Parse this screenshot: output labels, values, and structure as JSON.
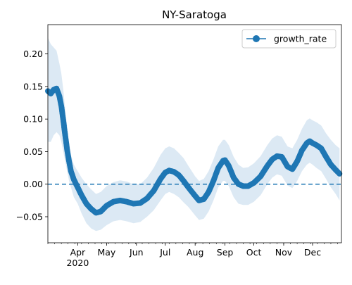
{
  "chart_data": {
    "type": "line",
    "title": "NY-Saratoga",
    "xlabel": "",
    "ylabel": "",
    "grid": false,
    "legend": {
      "placement": "top-right",
      "entries": [
        "growth_rate"
      ]
    },
    "x_range": [
      "2020-03-01",
      "2020-12-31"
    ],
    "ylim": [
      -0.09,
      0.245
    ],
    "x_ticks": [
      {
        "date": "2020-04-01",
        "label": "Apr",
        "sublabel": "2020"
      },
      {
        "date": "2020-05-01",
        "label": "May"
      },
      {
        "date": "2020-06-01",
        "label": "Jun"
      },
      {
        "date": "2020-07-01",
        "label": "Jul"
      },
      {
        "date": "2020-08-01",
        "label": "Aug"
      },
      {
        "date": "2020-09-01",
        "label": "Sep"
      },
      {
        "date": "2020-10-01",
        "label": "Oct"
      },
      {
        "date": "2020-11-01",
        "label": "Nov"
      },
      {
        "date": "2020-12-01",
        "label": "Dec"
      }
    ],
    "y_ticks": [
      {
        "value": 0.2,
        "label": "0.20"
      },
      {
        "value": 0.15,
        "label": "0.15"
      },
      {
        "value": 0.1,
        "label": "0.10"
      },
      {
        "value": 0.05,
        "label": "0.05"
      },
      {
        "value": 0.0,
        "label": "0.00"
      },
      {
        "value": -0.05,
        "label": "−0.05"
      }
    ],
    "reference_line": {
      "y": 0,
      "style": "dashed"
    },
    "series": [
      {
        "name": "growth_rate",
        "color": "#1f77b4",
        "band_color": "#dce9f4",
        "points": [
          [
            "2020-03-01",
            0.143,
            0.065,
            0.225
          ],
          [
            "2020-03-04",
            0.139,
            0.065,
            0.215
          ],
          [
            "2020-03-07",
            0.145,
            0.075,
            0.21
          ],
          [
            "2020-03-10",
            0.147,
            0.08,
            0.205
          ],
          [
            "2020-03-13",
            0.135,
            0.075,
            0.185
          ],
          [
            "2020-03-15",
            0.12,
            0.065,
            0.17
          ],
          [
            "2020-03-17",
            0.098,
            0.05,
            0.145
          ],
          [
            "2020-03-19",
            0.075,
            0.035,
            0.115
          ],
          [
            "2020-03-21",
            0.053,
            0.02,
            0.09
          ],
          [
            "2020-03-23",
            0.035,
            0.005,
            0.065
          ],
          [
            "2020-03-25",
            0.02,
            -0.005,
            0.045
          ],
          [
            "2020-03-28",
            0.007,
            -0.02,
            0.03
          ],
          [
            "2020-04-01",
            -0.005,
            -0.03,
            0.02
          ],
          [
            "2020-04-05",
            -0.017,
            -0.045,
            0.01
          ],
          [
            "2020-04-10",
            -0.03,
            -0.06,
            0.0
          ],
          [
            "2020-04-15",
            -0.038,
            -0.068,
            -0.008
          ],
          [
            "2020-04-20",
            -0.044,
            -0.072,
            -0.015
          ],
          [
            "2020-04-25",
            -0.042,
            -0.07,
            -0.012
          ],
          [
            "2020-05-01",
            -0.033,
            -0.063,
            -0.003
          ],
          [
            "2020-05-08",
            -0.027,
            -0.057,
            0.003
          ],
          [
            "2020-05-15",
            -0.025,
            -0.055,
            0.006
          ],
          [
            "2020-05-22",
            -0.027,
            -0.057,
            0.004
          ],
          [
            "2020-05-29",
            -0.03,
            -0.06,
            0.0
          ],
          [
            "2020-06-05",
            -0.029,
            -0.058,
            0.0
          ],
          [
            "2020-06-12",
            -0.022,
            -0.05,
            0.01
          ],
          [
            "2020-06-19",
            -0.01,
            -0.04,
            0.025
          ],
          [
            "2020-06-26",
            0.008,
            -0.025,
            0.045
          ],
          [
            "2020-07-01",
            0.018,
            -0.015,
            0.055
          ],
          [
            "2020-07-05",
            0.021,
            -0.012,
            0.058
          ],
          [
            "2020-07-10",
            0.019,
            -0.015,
            0.055
          ],
          [
            "2020-07-15",
            0.014,
            -0.02,
            0.048
          ],
          [
            "2020-07-20",
            0.005,
            -0.028,
            0.04
          ],
          [
            "2020-07-25",
            -0.005,
            -0.035,
            0.028
          ],
          [
            "2020-08-01",
            -0.018,
            -0.048,
            0.012
          ],
          [
            "2020-08-05",
            -0.025,
            -0.055,
            0.005
          ],
          [
            "2020-08-10",
            -0.023,
            -0.053,
            0.008
          ],
          [
            "2020-08-15",
            -0.012,
            -0.042,
            0.02
          ],
          [
            "2020-08-20",
            0.005,
            -0.025,
            0.038
          ],
          [
            "2020-08-25",
            0.025,
            -0.005,
            0.058
          ],
          [
            "2020-08-30",
            0.036,
            0.005,
            0.068
          ],
          [
            "2020-09-01",
            0.037,
            0.005,
            0.068
          ],
          [
            "2020-09-05",
            0.028,
            -0.003,
            0.06
          ],
          [
            "2020-09-10",
            0.01,
            -0.02,
            0.042
          ],
          [
            "2020-09-15",
            0.0,
            -0.03,
            0.03
          ],
          [
            "2020-09-20",
            -0.003,
            -0.032,
            0.025
          ],
          [
            "2020-09-25",
            -0.003,
            -0.032,
            0.026
          ],
          [
            "2020-10-01",
            0.002,
            -0.027,
            0.032
          ],
          [
            "2020-10-08",
            0.012,
            -0.017,
            0.043
          ],
          [
            "2020-10-15",
            0.028,
            0.0,
            0.06
          ],
          [
            "2020-10-20",
            0.038,
            0.01,
            0.07
          ],
          [
            "2020-10-25",
            0.043,
            0.015,
            0.075
          ],
          [
            "2020-10-30",
            0.042,
            0.013,
            0.073
          ],
          [
            "2020-11-05",
            0.027,
            -0.002,
            0.058
          ],
          [
            "2020-11-10",
            0.023,
            -0.006,
            0.055
          ],
          [
            "2020-11-15",
            0.035,
            0.005,
            0.068
          ],
          [
            "2020-11-20",
            0.052,
            0.02,
            0.085
          ],
          [
            "2020-11-25",
            0.063,
            0.03,
            0.098
          ],
          [
            "2020-11-28",
            0.066,
            0.033,
            0.101
          ],
          [
            "2020-12-01",
            0.063,
            0.03,
            0.098
          ],
          [
            "2020-12-05",
            0.06,
            0.025,
            0.095
          ],
          [
            "2020-12-10",
            0.055,
            0.02,
            0.09
          ],
          [
            "2020-12-15",
            0.042,
            0.008,
            0.078
          ],
          [
            "2020-12-20",
            0.03,
            -0.005,
            0.068
          ],
          [
            "2020-12-25",
            0.022,
            -0.015,
            0.06
          ],
          [
            "2020-12-29",
            0.016,
            -0.025,
            0.055
          ]
        ]
      }
    ]
  }
}
